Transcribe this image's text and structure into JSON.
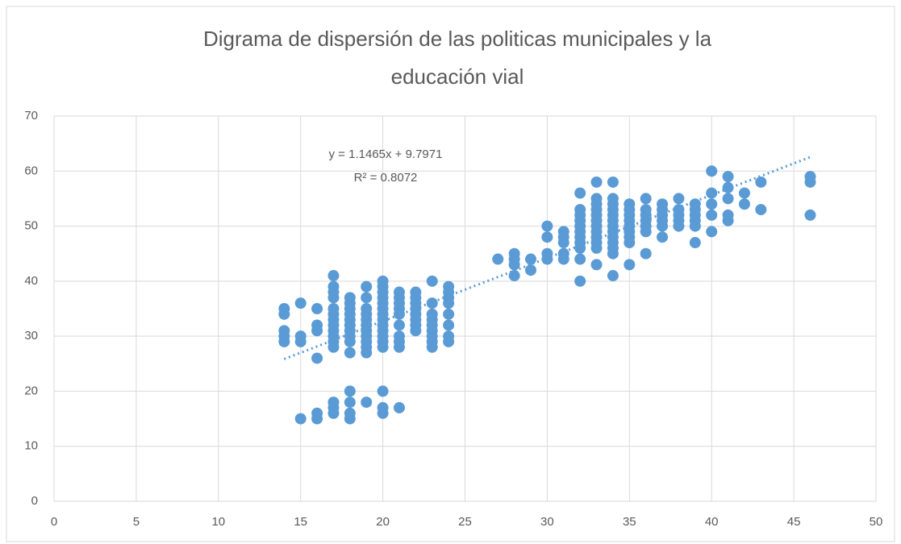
{
  "chart_data": {
    "type": "scatter",
    "title": [
      "Digrama de dispersión de las politicas municipales y la",
      "educación vial"
    ],
    "annotations": [
      "y = 1.1465x + 9.7971",
      "R² = 0.8072"
    ],
    "color": "#5b9bd5",
    "grid": true,
    "trendline": {
      "slope": 1.1465,
      "intercept": 9.7971,
      "x": [
        14,
        46
      ]
    },
    "xlim": [
      0,
      50
    ],
    "xticks": [
      0,
      5,
      10,
      15,
      20,
      25,
      30,
      35,
      40,
      45,
      50
    ],
    "ylim": [
      0,
      70
    ],
    "yticks": [
      0,
      10,
      20,
      30,
      40,
      50,
      60,
      70
    ],
    "x": [
      14,
      14,
      14,
      14,
      14,
      15,
      15,
      15,
      15,
      16,
      16,
      16,
      16,
      16,
      16,
      17,
      17,
      17,
      17,
      17,
      17,
      17,
      17,
      17,
      17,
      17,
      17,
      17,
      17,
      17,
      18,
      18,
      18,
      18,
      18,
      18,
      18,
      18,
      18,
      18,
      18,
      18,
      18,
      18,
      19,
      19,
      19,
      19,
      19,
      19,
      19,
      19,
      19,
      19,
      19,
      19,
      20,
      20,
      20,
      20,
      20,
      20,
      20,
      20,
      20,
      20,
      20,
      20,
      20,
      20,
      20,
      20,
      21,
      21,
      21,
      21,
      21,
      21,
      21,
      21,
      21,
      21,
      22,
      22,
      22,
      22,
      22,
      22,
      22,
      22,
      23,
      23,
      23,
      23,
      23,
      23,
      23,
      23,
      23,
      24,
      24,
      24,
      24,
      24,
      24,
      24,
      24,
      27,
      28,
      28,
      28,
      28,
      29,
      29,
      30,
      30,
      30,
      30,
      31,
      31,
      31,
      31,
      31,
      32,
      32,
      32,
      32,
      32,
      32,
      32,
      32,
      32,
      32,
      32,
      33,
      33,
      33,
      33,
      33,
      33,
      33,
      33,
      33,
      33,
      33,
      33,
      34,
      34,
      34,
      34,
      34,
      34,
      34,
      34,
      34,
      34,
      34,
      34,
      34,
      35,
      35,
      35,
      35,
      35,
      35,
      35,
      35,
      35,
      36,
      36,
      36,
      36,
      36,
      36,
      36,
      37,
      37,
      37,
      37,
      37,
      37,
      38,
      38,
      38,
      38,
      38,
      39,
      39,
      39,
      39,
      39,
      39,
      40,
      40,
      40,
      40,
      40,
      41,
      41,
      41,
      41,
      41,
      42,
      42,
      43,
      43,
      46,
      46,
      46
    ],
    "y": [
      35,
      34,
      31,
      30,
      29,
      36,
      30,
      29,
      15,
      35,
      32,
      31,
      26,
      16,
      15,
      41,
      39,
      38,
      37,
      35,
      34,
      33,
      32,
      31,
      30,
      29,
      28,
      18,
      17,
      16,
      37,
      36,
      35,
      34,
      33,
      32,
      31,
      30,
      29,
      27,
      20,
      18,
      16,
      15,
      39,
      37,
      35,
      34,
      33,
      32,
      31,
      30,
      29,
      28,
      27,
      18,
      40,
      39,
      38,
      37,
      36,
      35,
      34,
      33,
      32,
      31,
      30,
      29,
      28,
      20,
      17,
      16,
      38,
      37,
      36,
      35,
      34,
      32,
      30,
      29,
      28,
      17,
      38,
      37,
      36,
      35,
      34,
      33,
      32,
      31,
      40,
      36,
      34,
      33,
      32,
      31,
      30,
      29,
      28,
      39,
      38,
      37,
      36,
      34,
      32,
      30,
      29,
      44,
      45,
      44,
      43,
      41,
      44,
      42,
      50,
      48,
      45,
      44,
      49,
      48,
      47,
      45,
      44,
      56,
      53,
      52,
      51,
      50,
      49,
      48,
      47,
      46,
      44,
      40,
      58,
      55,
      54,
      53,
      52,
      51,
      50,
      49,
      48,
      47,
      46,
      43,
      58,
      55,
      54,
      53,
      52,
      51,
      50,
      49,
      48,
      47,
      46,
      45,
      41,
      54,
      53,
      52,
      51,
      50,
      49,
      48,
      47,
      43,
      55,
      53,
      52,
      51,
      50,
      49,
      45,
      54,
      53,
      52,
      51,
      50,
      48,
      55,
      53,
      52,
      51,
      50,
      54,
      53,
      52,
      51,
      50,
      47,
      60,
      56,
      54,
      52,
      49,
      59,
      57,
      55,
      52,
      51,
      56,
      54,
      58,
      53,
      59,
      58,
      52
    ]
  }
}
